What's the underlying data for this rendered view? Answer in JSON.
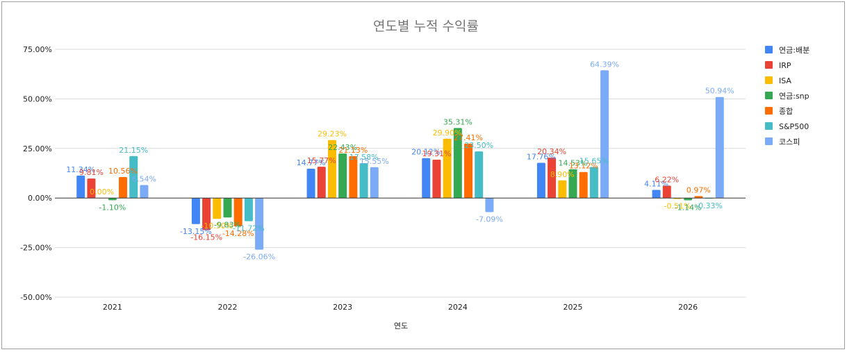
{
  "chart_data": {
    "type": "bar",
    "title": "연도별 누적 수익률",
    "xlabel": "연도",
    "ylabel": "",
    "ylim": [
      -50,
      75
    ],
    "yticks": [
      75,
      50,
      25,
      0,
      -25,
      -50
    ],
    "ytick_labels": [
      "75.00%",
      "50.00%",
      "25.00%",
      "0.00%",
      "-25.00%",
      "-50.00%"
    ],
    "legend_position": "right",
    "categories": [
      "2021",
      "2022",
      "2023",
      "2024",
      "2025",
      "2026"
    ],
    "series": [
      {
        "name": "연금:배분",
        "color": "#4285f4",
        "values": [
          11.34,
          -13.15,
          14.77,
          20.12,
          17.76,
          4.11
        ],
        "labels": [
          "11.34%",
          "-13.15%",
          "14.77%",
          "20.12%",
          "17.76%",
          "4.11%"
        ]
      },
      {
        "name": "IRP",
        "color": "#ea4335",
        "values": [
          9.81,
          -16.15,
          15.77,
          19.31,
          20.34,
          6.22
        ],
        "labels": [
          "9.81%",
          "-16.15%",
          "15.77%",
          "19.31%",
          "20.34%",
          "6.22%"
        ]
      },
      {
        "name": "ISA",
        "color": "#fbbc04",
        "values": [
          0.0,
          -10.5,
          29.23,
          29.9,
          8.9,
          -0.51
        ],
        "labels": [
          "0.00%",
          "-10.50%",
          "29.23%",
          "29.90%",
          "8.90%",
          "-0.51%"
        ]
      },
      {
        "name": "연금:snp",
        "color": "#34a853",
        "values": [
          -1.1,
          -9.83,
          22.43,
          35.31,
          14.53,
          -1.14
        ],
        "labels": [
          "-1.10%",
          "-9.83%",
          "22.43%",
          "35.31%",
          "14.53%",
          "-1.14%"
        ]
      },
      {
        "name": "종합",
        "color": "#ff6d01",
        "values": [
          10.56,
          -14.28,
          21.13,
          27.41,
          13.12,
          0.97
        ],
        "labels": [
          "10.56%",
          "-14.28%",
          "21.13%",
          "27.41%",
          "13.12%",
          "0.97%"
        ]
      },
      {
        "name": "S&P500",
        "color": "#46bdc6",
        "values": [
          21.15,
          -11.72,
          17.58,
          23.5,
          15.65,
          -0.33
        ],
        "labels": [
          "21.15%",
          "-11.72%",
          "17.58%",
          "23.50%",
          "15.65%",
          "-0.33%"
        ]
      },
      {
        "name": "코스피",
        "color": "#7baaf7",
        "values": [
          6.54,
          -26.06,
          15.55,
          -7.09,
          64.39,
          50.94
        ],
        "labels": [
          "6.54%",
          "-26.06%",
          "15.55%",
          "-7.09%",
          "64.39%",
          "50.94%"
        ]
      }
    ]
  }
}
